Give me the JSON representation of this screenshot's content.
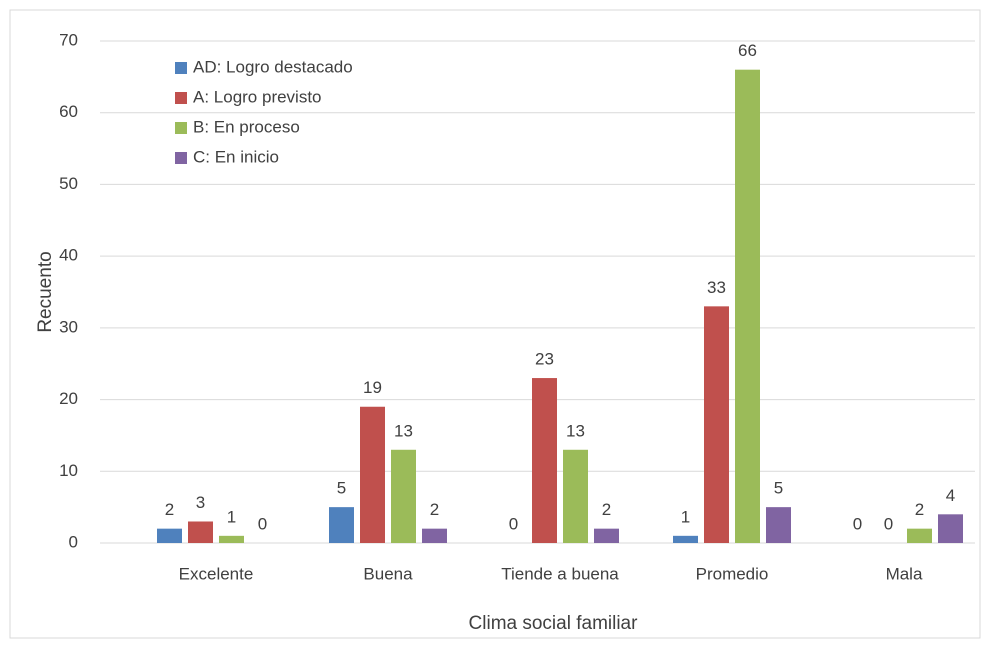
{
  "chart_data": {
    "type": "bar",
    "x_label": "Clima social familiar",
    "y_label": "Recuento",
    "categories": [
      "Excelente",
      "Buena",
      "Tiende a buena",
      "Promedio",
      "Mala"
    ],
    "series": [
      {
        "name": "AD: Logro destacado",
        "color": "#4f81bd",
        "values": [
          2,
          5,
          0,
          1,
          0
        ]
      },
      {
        "name": "A: Logro previsto",
        "color": "#c0504d",
        "values": [
          3,
          19,
          23,
          33,
          0
        ]
      },
      {
        "name": "B: En proceso",
        "color": "#9bbb59",
        "values": [
          1,
          13,
          13,
          66,
          2
        ]
      },
      {
        "name": "C: En inicio",
        "color": "#8064a2",
        "values": [
          0,
          2,
          2,
          5,
          4
        ]
      }
    ],
    "ylim": [
      0,
      70
    ],
    "yticks": [
      0,
      10,
      20,
      30,
      40,
      50,
      60,
      70
    ],
    "grid": true,
    "legend": "top-left"
  }
}
